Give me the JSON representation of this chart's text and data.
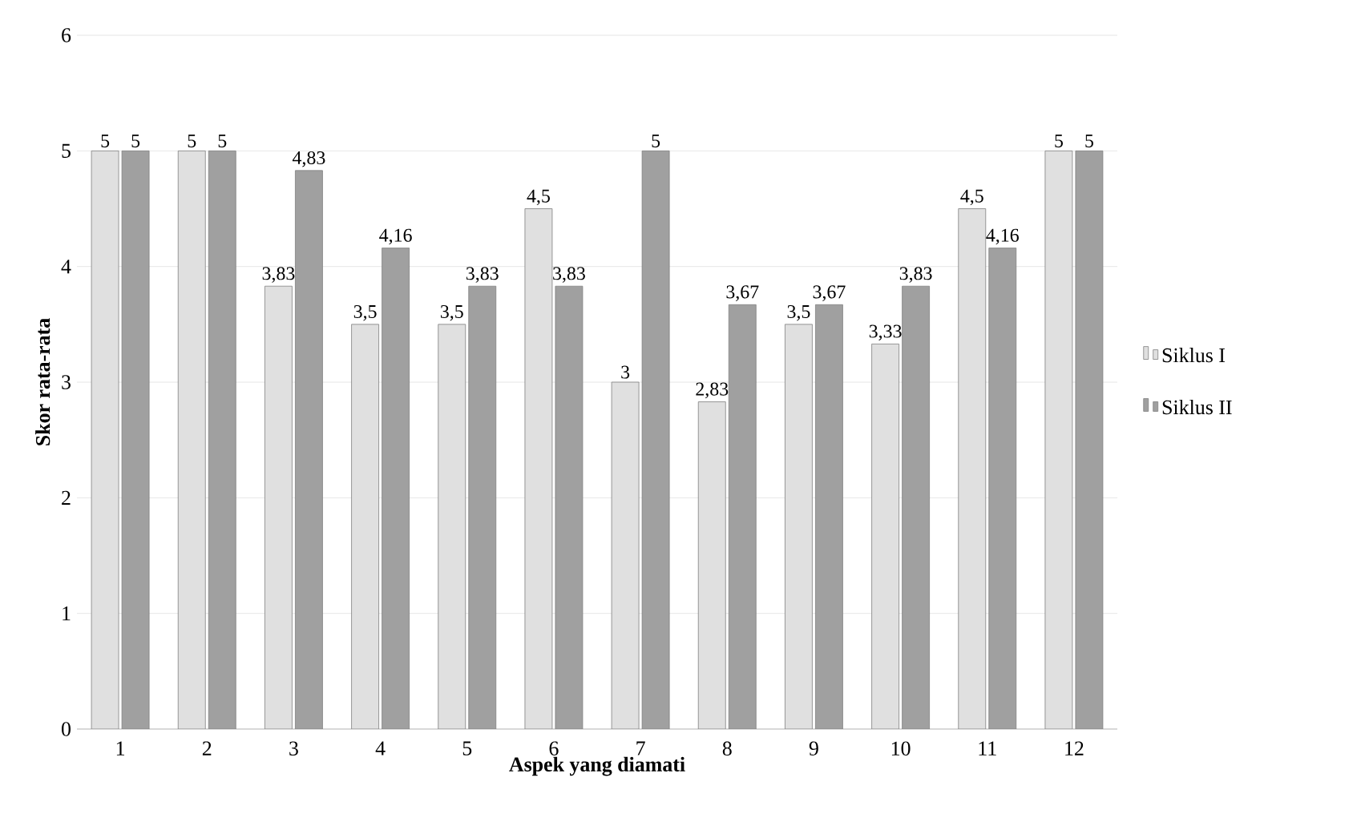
{
  "chart_data": {
    "type": "bar",
    "xlabel": "Aspek yang diamati",
    "ylabel": "Skor rata-rata",
    "categories": [
      "1",
      "2",
      "3",
      "4",
      "5",
      "6",
      "7",
      "8",
      "9",
      "10",
      "11",
      "12"
    ],
    "series": [
      {
        "name": "Siklus I",
        "color": "#e0e0e0",
        "values": [
          5,
          5,
          3.83,
          3.5,
          3.5,
          4.5,
          3,
          2.83,
          3.5,
          3.33,
          4.5,
          5
        ],
        "value_labels": [
          "5",
          "5",
          "3,83",
          "3,5",
          "3,5",
          "4,5",
          "3",
          "2,83",
          "3,5",
          "3,33",
          "4,5",
          "5"
        ]
      },
      {
        "name": "Siklus II",
        "color": "#a0a0a0",
        "values": [
          5,
          5,
          4.83,
          4.16,
          3.83,
          3.83,
          5,
          3.67,
          3.67,
          3.83,
          4.16,
          5
        ],
        "value_labels": [
          "5",
          "5",
          "4,83",
          "4,16",
          "3,83",
          "3,83",
          "5",
          "3,67",
          "3,67",
          "3,83",
          "4,16",
          "5"
        ]
      }
    ],
    "ylim": [
      0,
      6
    ],
    "yticks": [
      0,
      1,
      2,
      3,
      4,
      5,
      6
    ],
    "grid": "y",
    "legend": "right"
  }
}
